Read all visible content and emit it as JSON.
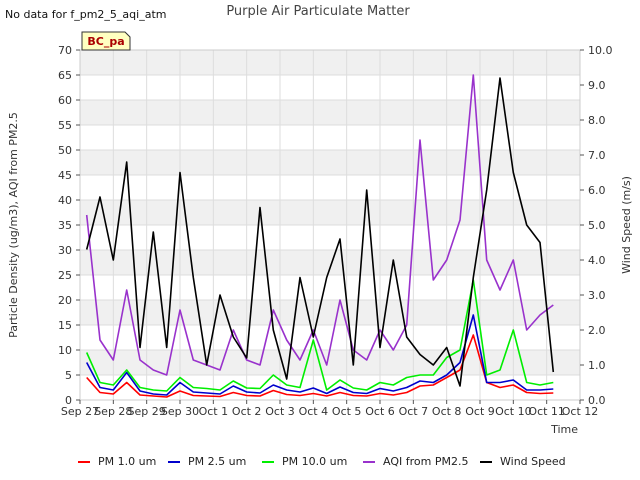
{
  "chart_data": {
    "type": "line",
    "title": "Purple Air Particulate Matter",
    "note": "No data for f_pm2_5_aqi_atm",
    "site_label": "BC_pa",
    "xlabel": "Time",
    "ylabel": "Particle Density (ug/m3), AQI from PM2.5",
    "y2label": "Wind Speed (m/s)",
    "ylim": [
      0,
      70
    ],
    "y2lim": [
      0,
      10
    ],
    "xlim": [
      0,
      15
    ],
    "x_ticks": [
      "Sep 27",
      "Sep 28",
      "Sep 29",
      "Sep 30",
      "Oct 1",
      "Oct 2",
      "Oct 3",
      "Oct 4",
      "Oct 5",
      "Oct 6",
      "Oct 7",
      "Oct 8",
      "Oct 9",
      "Oct 10",
      "Oct 11",
      "Oct 12"
    ],
    "y_ticks": [
      "0",
      "5",
      "10",
      "15",
      "20",
      "25",
      "30",
      "35",
      "40",
      "45",
      "50",
      "55",
      "60",
      "65",
      "70"
    ],
    "y2_ticks": [
      "0.0",
      "1.0",
      "2.0",
      "3.0",
      "4.0",
      "5.0",
      "6.0",
      "7.0",
      "8.0",
      "9.0",
      "10.0"
    ],
    "grid": true,
    "legend_position": "bottom",
    "x": [
      0.2,
      0.6,
      1.0,
      1.4,
      1.8,
      2.2,
      2.6,
      3.0,
      3.4,
      3.8,
      4.2,
      4.6,
      5.0,
      5.4,
      5.8,
      6.2,
      6.6,
      7.0,
      7.4,
      7.8,
      8.2,
      8.6,
      9.0,
      9.4,
      9.8,
      10.2,
      10.6,
      11.0,
      11.4,
      11.8,
      12.2,
      12.6,
      13.0,
      13.4,
      13.8,
      14.2
    ],
    "series": [
      {
        "name": "PM 1.0 um",
        "axis": "left",
        "color": "#ff0000",
        "values": [
          4.5,
          1.5,
          1.2,
          3.5,
          1.0,
          0.8,
          0.6,
          1.8,
          0.9,
          0.8,
          0.7,
          1.5,
          0.9,
          0.8,
          1.9,
          1.1,
          0.9,
          1.3,
          0.8,
          1.5,
          0.9,
          0.8,
          1.3,
          1.0,
          1.5,
          2.8,
          3.0,
          4.5,
          6.0,
          13.0,
          3.5,
          2.5,
          3.0,
          1.5,
          1.3,
          1.4
        ]
      },
      {
        "name": "PM 2.5 um",
        "axis": "left",
        "color": "#0000cc",
        "values": [
          7.5,
          2.5,
          2.0,
          5.5,
          1.8,
          1.2,
          1.0,
          3.5,
          1.6,
          1.4,
          1.2,
          2.8,
          1.6,
          1.4,
          3.0,
          2.0,
          1.6,
          2.4,
          1.3,
          2.6,
          1.5,
          1.3,
          2.3,
          1.8,
          2.5,
          3.8,
          3.5,
          5.0,
          7.5,
          17.0,
          3.5,
          3.5,
          4.0,
          2.0,
          2.0,
          2.2
        ]
      },
      {
        "name": "PM 10.0 um",
        "axis": "left",
        "color": "#00ee00",
        "values": [
          9.5,
          3.5,
          3.0,
          6.0,
          2.5,
          2.0,
          1.8,
          4.5,
          2.5,
          2.3,
          2.0,
          3.8,
          2.4,
          2.3,
          5.0,
          3.0,
          2.5,
          12.0,
          2.0,
          4.0,
          2.4,
          2.0,
          3.5,
          3.0,
          4.5,
          5.0,
          5.0,
          8.5,
          10.0,
          24.0,
          5.0,
          6.0,
          14.0,
          3.5,
          3.0,
          3.5
        ]
      },
      {
        "name": "AQI from PM2.5",
        "axis": "left",
        "color": "#9932cc",
        "values": [
          37.0,
          12.0,
          8.0,
          22.0,
          8.0,
          6.0,
          5.0,
          18.0,
          8.0,
          7.0,
          6.0,
          14.0,
          8.0,
          7.0,
          18.0,
          12.0,
          8.0,
          14.0,
          7.0,
          20.0,
          10.0,
          8.0,
          14.0,
          10.0,
          15.0,
          52.0,
          24.0,
          28.0,
          36.0,
          65.0,
          28.0,
          22.0,
          28.0,
          14.0,
          17.0,
          19.0
        ]
      },
      {
        "name": "Wind Speed",
        "axis": "right",
        "color": "#000000",
        "values": [
          4.3,
          5.8,
          4.0,
          6.8,
          1.5,
          4.8,
          1.5,
          6.5,
          3.5,
          1.0,
          3.0,
          1.8,
          1.2,
          5.5,
          2.0,
          0.6,
          3.5,
          1.8,
          3.5,
          4.6,
          1.0,
          6.0,
          1.5,
          4.0,
          1.8,
          1.3,
          1.0,
          1.5,
          0.4,
          3.5,
          6.0,
          9.2,
          6.5,
          5.0,
          4.5,
          0.8
        ]
      }
    ]
  }
}
